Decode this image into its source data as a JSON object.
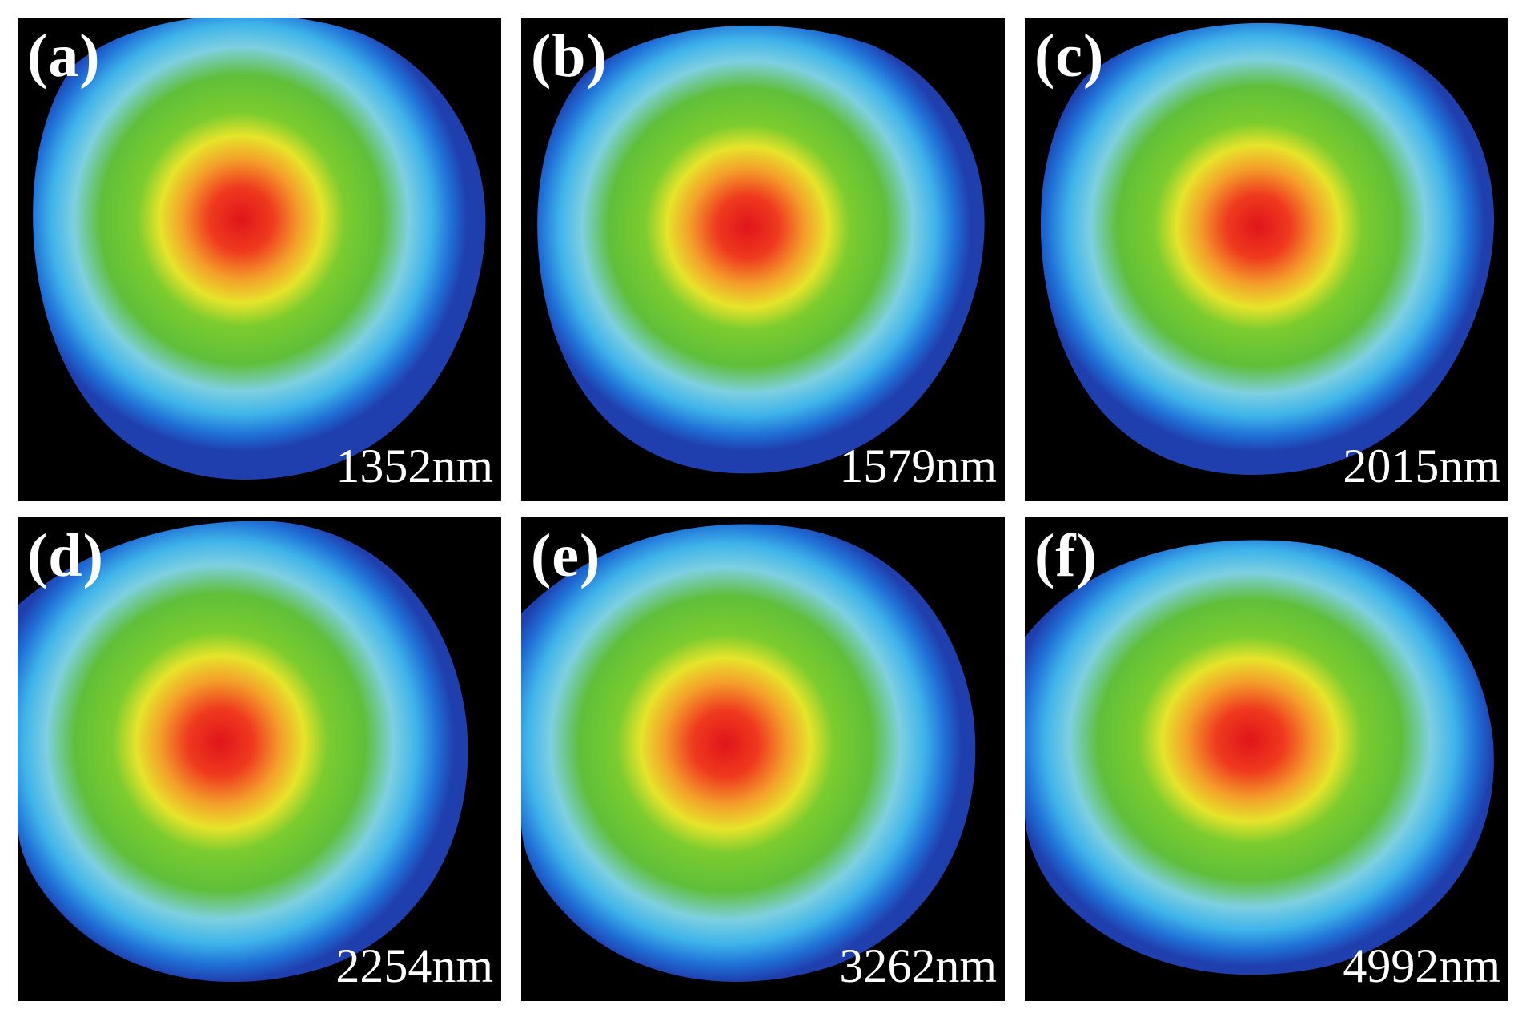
{
  "figure": {
    "colors": {
      "background": "#000000",
      "separator": "#ffffff",
      "colormap": [
        "#1f3fae",
        "#1f6fd6",
        "#3fb4ea",
        "#7ed0e0",
        "#5fbf3a",
        "#7ccc2e",
        "#e6e42a",
        "#f4a02a",
        "#ef3a1e",
        "#e0141a"
      ]
    },
    "panels": [
      {
        "label": "(a)",
        "wavelength": "1352nm"
      },
      {
        "label": "(b)",
        "wavelength": "1579nm"
      },
      {
        "label": "(c)",
        "wavelength": "2015nm"
      },
      {
        "label": "(d)",
        "wavelength": "2254nm"
      },
      {
        "label": "(e)",
        "wavelength": "3262nm"
      },
      {
        "label": "(f)",
        "wavelength": "4992nm"
      }
    ]
  }
}
